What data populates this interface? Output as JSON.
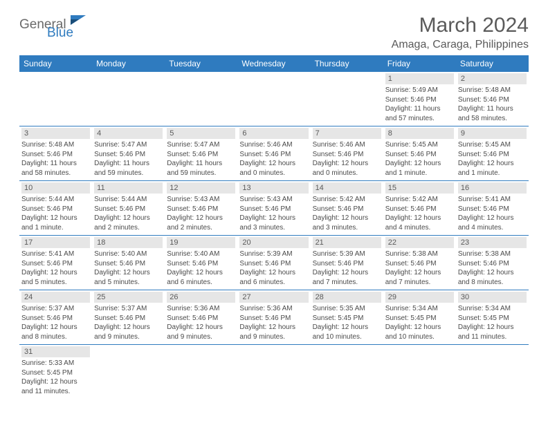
{
  "branding": {
    "word1": "General",
    "word2": "Blue",
    "accent_color": "#2f7bbf",
    "text_color": "#6a6a6a"
  },
  "title": "March 2024",
  "location": "Amaga, Caraga, Philippines",
  "colors": {
    "header_bg": "#2f7bbf",
    "header_text": "#ffffff",
    "daynum_bg": "#e6e6e6",
    "daynum_text": "#5a5a5a",
    "body_text": "#4a4a4a",
    "row_divider": "#2f7bbf",
    "background": "#ffffff"
  },
  "weekdays": [
    "Sunday",
    "Monday",
    "Tuesday",
    "Wednesday",
    "Thursday",
    "Friday",
    "Saturday"
  ],
  "weeks": [
    [
      null,
      null,
      null,
      null,
      null,
      {
        "n": "1",
        "sunrise": "5:49 AM",
        "sunset": "5:46 PM",
        "daylight": "11 hours and 57 minutes."
      },
      {
        "n": "2",
        "sunrise": "5:48 AM",
        "sunset": "5:46 PM",
        "daylight": "11 hours and 58 minutes."
      }
    ],
    [
      {
        "n": "3",
        "sunrise": "5:48 AM",
        "sunset": "5:46 PM",
        "daylight": "11 hours and 58 minutes."
      },
      {
        "n": "4",
        "sunrise": "5:47 AM",
        "sunset": "5:46 PM",
        "daylight": "11 hours and 59 minutes."
      },
      {
        "n": "5",
        "sunrise": "5:47 AM",
        "sunset": "5:46 PM",
        "daylight": "11 hours and 59 minutes."
      },
      {
        "n": "6",
        "sunrise": "5:46 AM",
        "sunset": "5:46 PM",
        "daylight": "12 hours and 0 minutes."
      },
      {
        "n": "7",
        "sunrise": "5:46 AM",
        "sunset": "5:46 PM",
        "daylight": "12 hours and 0 minutes."
      },
      {
        "n": "8",
        "sunrise": "5:45 AM",
        "sunset": "5:46 PM",
        "daylight": "12 hours and 1 minute."
      },
      {
        "n": "9",
        "sunrise": "5:45 AM",
        "sunset": "5:46 PM",
        "daylight": "12 hours and 1 minute."
      }
    ],
    [
      {
        "n": "10",
        "sunrise": "5:44 AM",
        "sunset": "5:46 PM",
        "daylight": "12 hours and 1 minute."
      },
      {
        "n": "11",
        "sunrise": "5:44 AM",
        "sunset": "5:46 PM",
        "daylight": "12 hours and 2 minutes."
      },
      {
        "n": "12",
        "sunrise": "5:43 AM",
        "sunset": "5:46 PM",
        "daylight": "12 hours and 2 minutes."
      },
      {
        "n": "13",
        "sunrise": "5:43 AM",
        "sunset": "5:46 PM",
        "daylight": "12 hours and 3 minutes."
      },
      {
        "n": "14",
        "sunrise": "5:42 AM",
        "sunset": "5:46 PM",
        "daylight": "12 hours and 3 minutes."
      },
      {
        "n": "15",
        "sunrise": "5:42 AM",
        "sunset": "5:46 PM",
        "daylight": "12 hours and 4 minutes."
      },
      {
        "n": "16",
        "sunrise": "5:41 AM",
        "sunset": "5:46 PM",
        "daylight": "12 hours and 4 minutes."
      }
    ],
    [
      {
        "n": "17",
        "sunrise": "5:41 AM",
        "sunset": "5:46 PM",
        "daylight": "12 hours and 5 minutes."
      },
      {
        "n": "18",
        "sunrise": "5:40 AM",
        "sunset": "5:46 PM",
        "daylight": "12 hours and 5 minutes."
      },
      {
        "n": "19",
        "sunrise": "5:40 AM",
        "sunset": "5:46 PM",
        "daylight": "12 hours and 6 minutes."
      },
      {
        "n": "20",
        "sunrise": "5:39 AM",
        "sunset": "5:46 PM",
        "daylight": "12 hours and 6 minutes."
      },
      {
        "n": "21",
        "sunrise": "5:39 AM",
        "sunset": "5:46 PM",
        "daylight": "12 hours and 7 minutes."
      },
      {
        "n": "22",
        "sunrise": "5:38 AM",
        "sunset": "5:46 PM",
        "daylight": "12 hours and 7 minutes."
      },
      {
        "n": "23",
        "sunrise": "5:38 AM",
        "sunset": "5:46 PM",
        "daylight": "12 hours and 8 minutes."
      }
    ],
    [
      {
        "n": "24",
        "sunrise": "5:37 AM",
        "sunset": "5:46 PM",
        "daylight": "12 hours and 8 minutes."
      },
      {
        "n": "25",
        "sunrise": "5:37 AM",
        "sunset": "5:46 PM",
        "daylight": "12 hours and 9 minutes."
      },
      {
        "n": "26",
        "sunrise": "5:36 AM",
        "sunset": "5:46 PM",
        "daylight": "12 hours and 9 minutes."
      },
      {
        "n": "27",
        "sunrise": "5:36 AM",
        "sunset": "5:46 PM",
        "daylight": "12 hours and 9 minutes."
      },
      {
        "n": "28",
        "sunrise": "5:35 AM",
        "sunset": "5:45 PM",
        "daylight": "12 hours and 10 minutes."
      },
      {
        "n": "29",
        "sunrise": "5:34 AM",
        "sunset": "5:45 PM",
        "daylight": "12 hours and 10 minutes."
      },
      {
        "n": "30",
        "sunrise": "5:34 AM",
        "sunset": "5:45 PM",
        "daylight": "12 hours and 11 minutes."
      }
    ],
    [
      {
        "n": "31",
        "sunrise": "5:33 AM",
        "sunset": "5:45 PM",
        "daylight": "12 hours and 11 minutes."
      },
      null,
      null,
      null,
      null,
      null,
      null
    ]
  ],
  "labels": {
    "sunrise_prefix": "Sunrise: ",
    "sunset_prefix": "Sunset: ",
    "daylight_prefix": "Daylight: "
  }
}
